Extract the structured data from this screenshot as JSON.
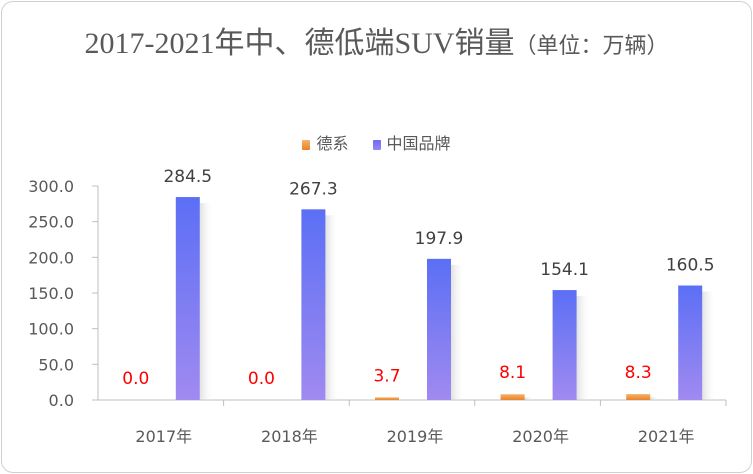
{
  "title": "2017-2021年中、德低端SUV销量",
  "unit": "（单位：万辆）",
  "legend": [
    {
      "name": "德系",
      "color": "#f0963c"
    },
    {
      "name": "中国品牌",
      "color": "#7b72ee"
    }
  ],
  "chart_data": {
    "type": "bar",
    "categories": [
      "2017年",
      "2018年",
      "2019年",
      "2020年",
      "2021年"
    ],
    "series": [
      {
        "name": "德系",
        "values": [
          0.0,
          0.0,
          3.7,
          8.1,
          8.3
        ],
        "color": "#f0963c",
        "label_color": "#ff0000"
      },
      {
        "name": "中国品牌",
        "values": [
          284.5,
          267.3,
          197.9,
          154.1,
          160.5
        ],
        "color": "#7b72ee",
        "label_color": "#404040"
      }
    ],
    "ylim": [
      0,
      300
    ],
    "yticks": [
      "0.0",
      "50.0",
      "100.0",
      "150.0",
      "200.0",
      "250.0",
      "300.0"
    ],
    "grid": false,
    "legend_position": "top"
  }
}
